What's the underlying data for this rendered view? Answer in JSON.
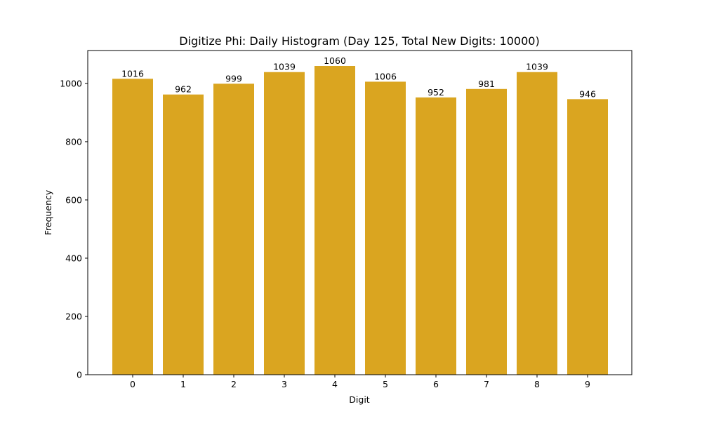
{
  "chart_data": {
    "type": "bar",
    "title": "Digitize Phi: Daily Histogram (Day 125, Total New Digits: 10000)",
    "xlabel": "Digit",
    "ylabel": "Frequency",
    "categories": [
      "0",
      "1",
      "2",
      "3",
      "4",
      "5",
      "6",
      "7",
      "8",
      "9"
    ],
    "values": [
      1016,
      962,
      999,
      1039,
      1060,
      1006,
      952,
      981,
      1039,
      946
    ],
    "ylim": [
      0,
      1113
    ],
    "yticks": [
      0,
      200,
      400,
      600,
      800,
      1000
    ],
    "grid": false,
    "legend": null,
    "bar_color": "#daa520",
    "data_labels": true
  }
}
